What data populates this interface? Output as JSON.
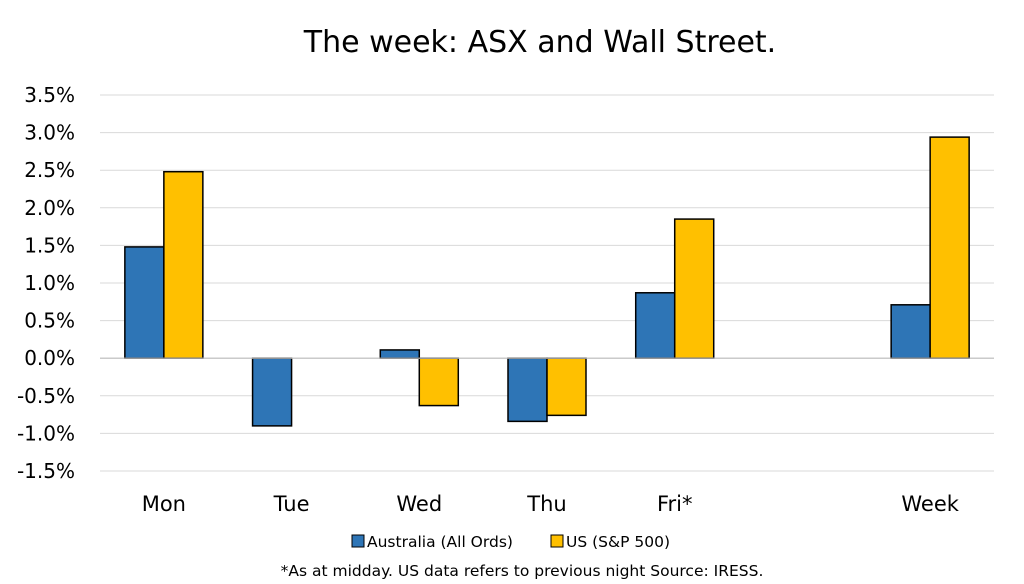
{
  "chart_data": {
    "type": "bar",
    "title": "The week:  ASX and Wall Street.",
    "categories": [
      "Mon",
      "Tue",
      "Wed",
      "Thu",
      "Fri*",
      "",
      "Week"
    ],
    "series": [
      {
        "name": "Australia (All Ords)",
        "color": "#2e75b6",
        "values": [
          1.48,
          -0.9,
          0.11,
          -0.84,
          0.87,
          null,
          0.71
        ]
      },
      {
        "name": "US (S&P 500)",
        "color": "#ffc000",
        "values": [
          2.48,
          null,
          -0.63,
          -0.76,
          1.85,
          null,
          2.94
        ]
      }
    ],
    "ylim": [
      -1.5,
      3.5
    ],
    "yticks": [
      3.5,
      3.0,
      2.5,
      2.0,
      1.5,
      1.0,
      0.5,
      0.0,
      -0.5,
      -1.0,
      -1.5
    ],
    "ytick_labels": [
      "3.5%",
      "3.0%",
      "2.5%",
      "2.0%",
      "1.5%",
      "1.0%",
      "0.5%",
      "0.0%",
      "-0.5%",
      "-1.0%",
      "-1.5%"
    ],
    "grid": true,
    "legend_position": "bottom",
    "footnote": "*As at midday. US data refers to previous night  Source:  IRESS."
  }
}
